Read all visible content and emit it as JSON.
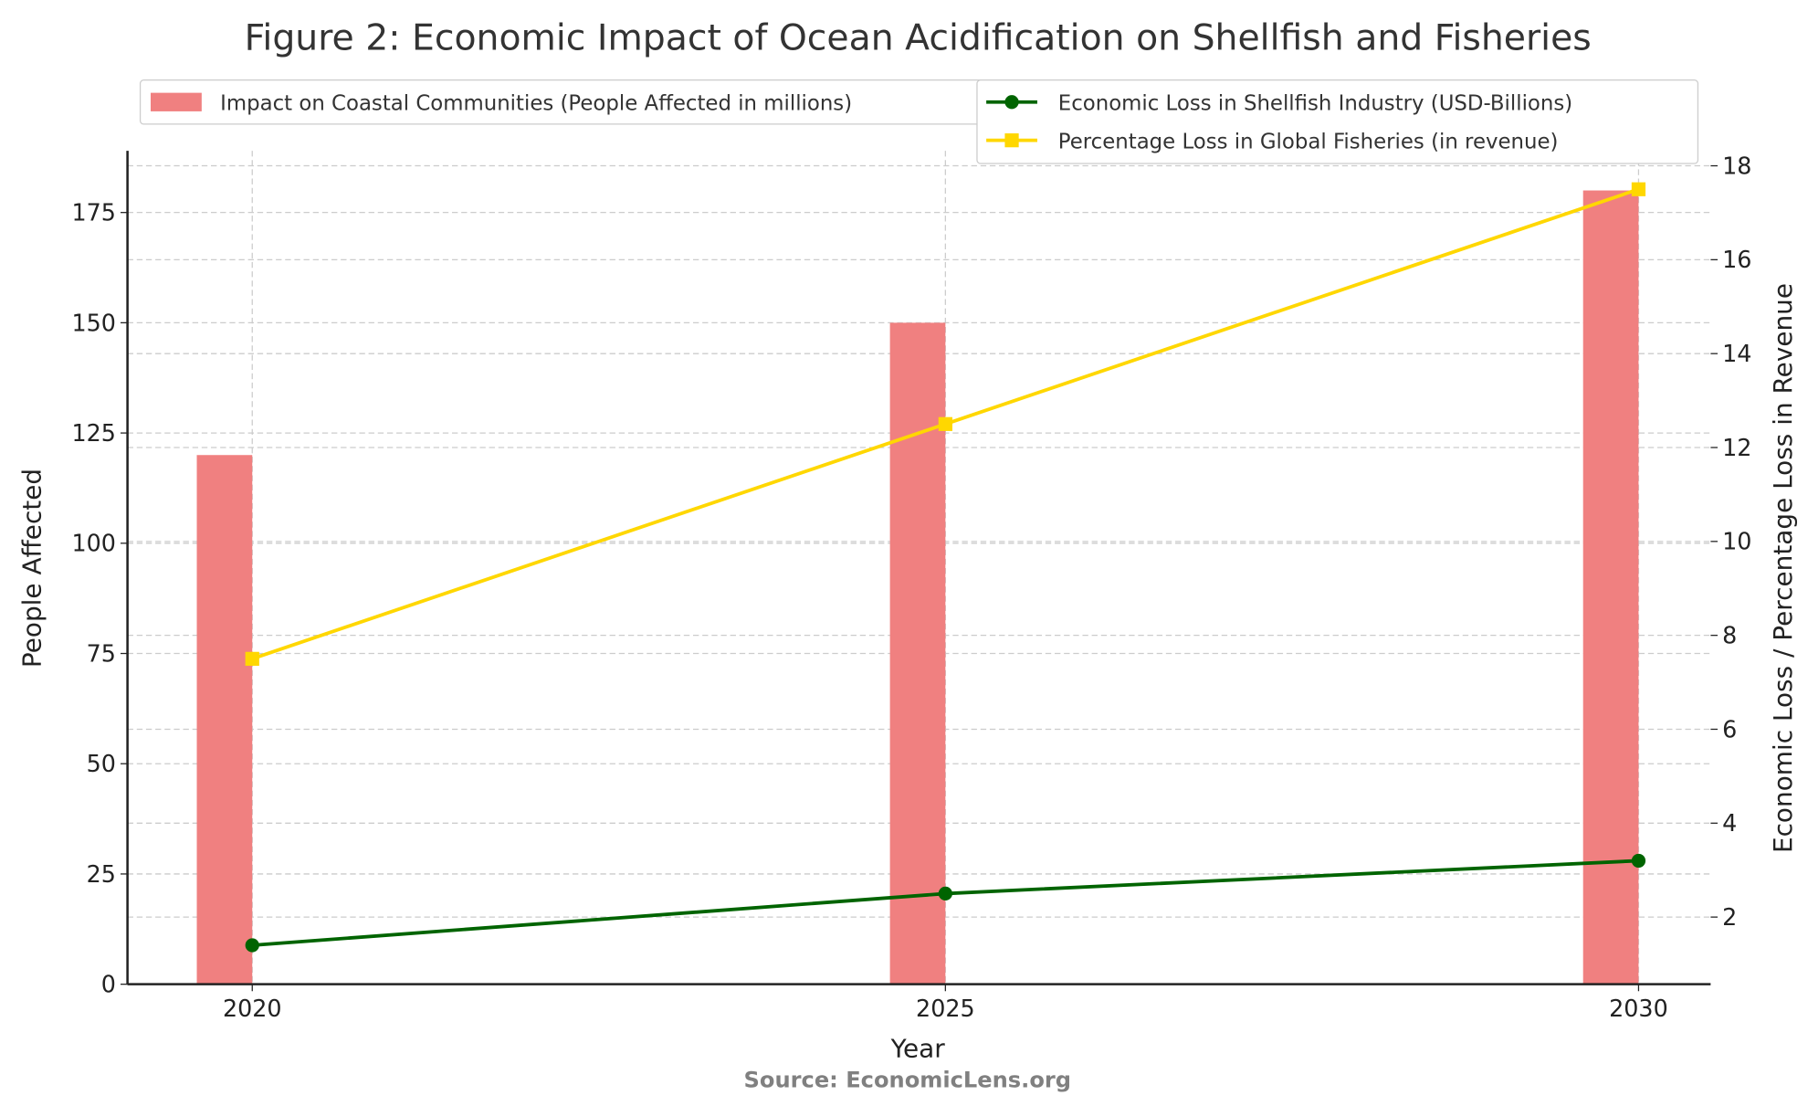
{
  "chart_data": {
    "type": "bar+line",
    "title": "Figure 2: Economic Impact of Ocean Acidification on Shellfish and Fisheries",
    "xlabel": "Year",
    "ylabel_left": "People Affected",
    "ylabel_right": "Economic Loss / Percentage Loss in Revenue",
    "source": "Source: EconomicLens.org",
    "categories": [
      2020,
      2025,
      2030
    ],
    "x_ticks": [
      "2020",
      "2025",
      "2030"
    ],
    "xlim": [
      2019.1,
      2030.52
    ],
    "ylim_left": [
      0,
      189
    ],
    "ylim_right": [
      0.57,
      18.32
    ],
    "y_ticks_left": [
      0,
      25,
      50,
      75,
      100,
      125,
      150,
      175
    ],
    "y_ticks_right": [
      2,
      4,
      6,
      8,
      10,
      12,
      14,
      16,
      18
    ],
    "grid": true,
    "legend_placement": "top",
    "bars": {
      "name": "Impact on Coastal Communities (People Affected in millions)",
      "values": [
        120,
        150,
        180
      ],
      "color": "#f08080",
      "axis": "left"
    },
    "series": [
      {
        "name": "Economic Loss in Shellfish Industry (USD-Billions)",
        "values": [
          1.4,
          2.5,
          3.2
        ],
        "color": "#006400",
        "marker": "circle",
        "axis": "right"
      },
      {
        "name": "Percentage Loss in Global Fisheries (in revenue)",
        "values": [
          7.5,
          12.5,
          17.5
        ],
        "color": "#ffd700",
        "marker": "square",
        "axis": "right"
      }
    ]
  }
}
